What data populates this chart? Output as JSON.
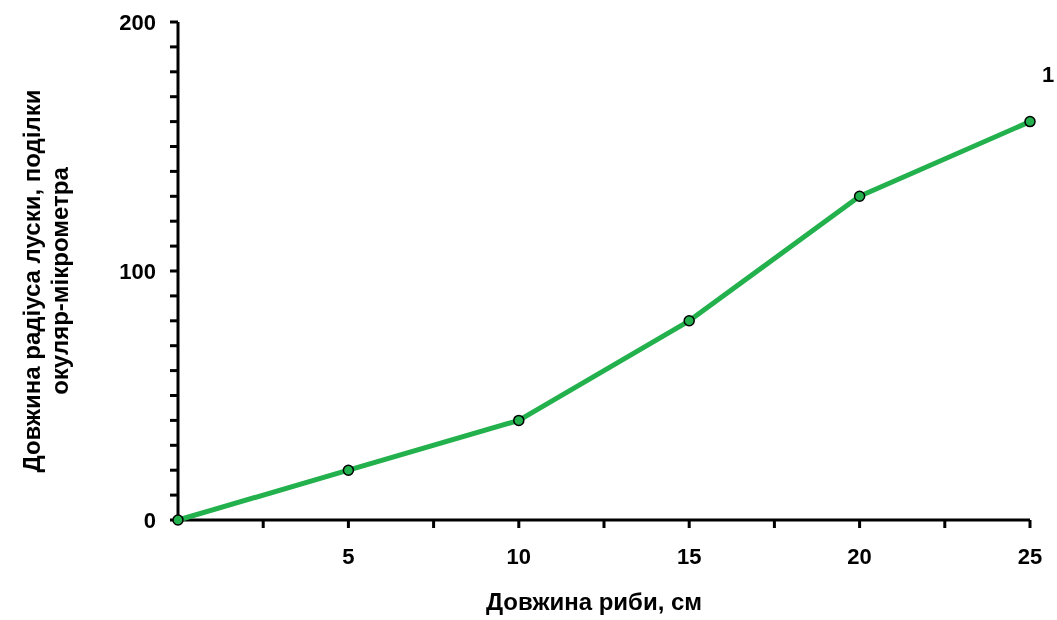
{
  "chart_data": {
    "type": "line",
    "xlabel": "Довжина риби, см",
    "ylabel": "Довжина радіуса луски, поділки окуляр-мікрометра",
    "x": [
      0,
      5,
      10,
      15,
      20,
      25
    ],
    "series": [
      {
        "name": "1",
        "color": "#22b14c",
        "values": [
          0,
          20,
          40,
          80,
          130,
          160
        ]
      }
    ],
    "xlim": [
      0,
      25
    ],
    "xticks": [
      {
        "value": 2.5,
        "label": null
      },
      5,
      {
        "value": 7.5,
        "label": null
      },
      10,
      {
        "value": 12.5,
        "label": null
      },
      15,
      {
        "value": 17.5,
        "label": null
      },
      20,
      {
        "value": 22.5,
        "label": null
      },
      25
    ],
    "ylim": [
      0,
      200
    ],
    "yticks": [
      0,
      {
        "value": 10,
        "label": null
      },
      {
        "value": 20,
        "label": null
      },
      {
        "value": 30,
        "label": null
      },
      {
        "value": 40,
        "label": null
      },
      {
        "value": 50,
        "label": null
      },
      {
        "value": 60,
        "label": null
      },
      {
        "value": 70,
        "label": null
      },
      {
        "value": 80,
        "label": null
      },
      {
        "value": 90,
        "label": null
      },
      100,
      {
        "value": 110,
        "label": null
      },
      {
        "value": 120,
        "label": null
      },
      {
        "value": 130,
        "label": null
      },
      {
        "value": 140,
        "label": null
      },
      {
        "value": 150,
        "label": null
      },
      {
        "value": 160,
        "label": null
      },
      {
        "value": 170,
        "label": null
      },
      {
        "value": 180,
        "label": null
      },
      {
        "value": 190,
        "label": null
      },
      200
    ],
    "grid": false,
    "marker": "circle",
    "line_style": "solid"
  }
}
